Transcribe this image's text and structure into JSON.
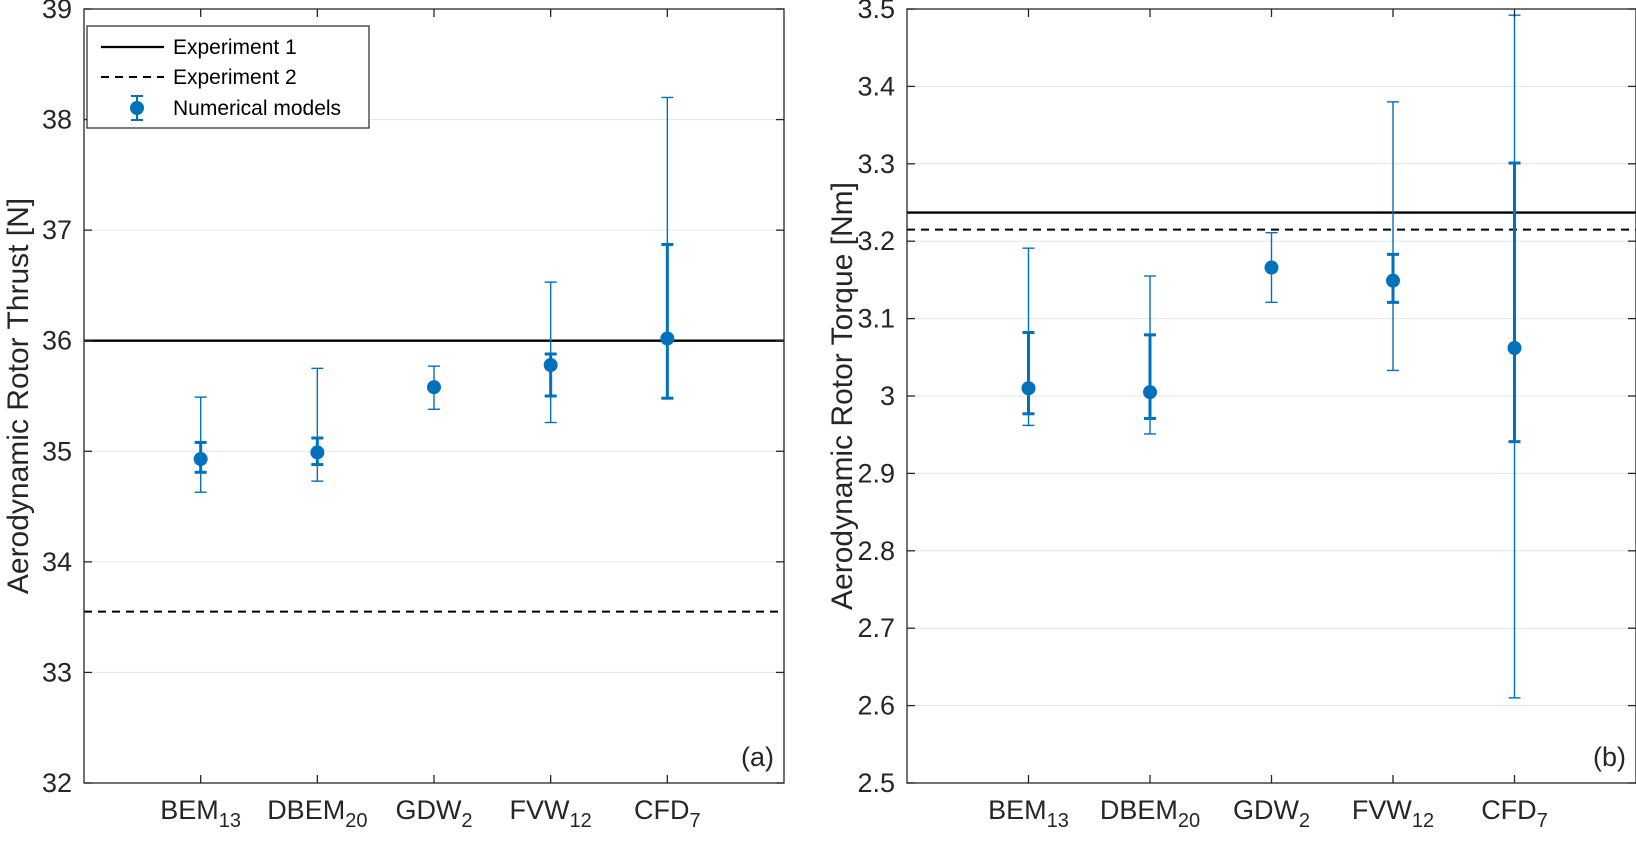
{
  "colors": {
    "accent": "#0072BD",
    "axis": "#262626",
    "grid": "#e6e6e6",
    "line": "#000000"
  },
  "legend": {
    "items": [
      {
        "label": "Experiment 1",
        "style": "solid"
      },
      {
        "label": "Experiment 2",
        "style": "dashed"
      },
      {
        "label": "Numerical models",
        "style": "marker"
      }
    ]
  },
  "chart_data": [
    {
      "type": "errorbar",
      "panel_label": "(a)",
      "ylabel": "Aerodynamic Rotor Thrust [N]",
      "ylim": [
        32,
        39
      ],
      "yticks": [
        "32",
        "33",
        "34",
        "35",
        "36",
        "37",
        "38",
        "39"
      ],
      "categories": [
        {
          "base": "BEM",
          "sub": "13"
        },
        {
          "base": "DBEM",
          "sub": "20"
        },
        {
          "base": "GDW",
          "sub": "2"
        },
        {
          "base": "FVW",
          "sub": "12"
        },
        {
          "base": "CFD",
          "sub": "7"
        }
      ],
      "reference_lines": [
        {
          "name": "Experiment 1",
          "value": 36.0,
          "style": "solid"
        },
        {
          "name": "Experiment 2",
          "value": 33.55,
          "style": "dashed"
        }
      ],
      "series": [
        {
          "name": "Numerical models",
          "values": [
            34.93,
            34.99,
            35.58,
            35.78,
            36.02
          ],
          "inner_range": [
            [
              34.81,
              35.08
            ],
            [
              34.88,
              35.12
            ],
            null,
            [
              35.5,
              35.88
            ],
            [
              35.48,
              36.87
            ]
          ],
          "outer_range": [
            [
              34.63,
              35.49
            ],
            [
              34.73,
              35.75
            ],
            [
              35.38,
              35.77
            ],
            [
              35.26,
              36.53
            ],
            [
              35.48,
              38.2
            ]
          ]
        }
      ]
    },
    {
      "type": "errorbar",
      "panel_label": "(b)",
      "ylabel": "Aerodynamic Rotor Torque [Nm]",
      "ylim": [
        2.5,
        3.5
      ],
      "yticks": [
        "2.5",
        "2.6",
        "2.7",
        "2.8",
        "2.9",
        "3",
        "3.1",
        "3.2",
        "3.3",
        "3.4",
        "3.5"
      ],
      "categories": [
        {
          "base": "BEM",
          "sub": "13"
        },
        {
          "base": "DBEM",
          "sub": "20"
        },
        {
          "base": "GDW",
          "sub": "2"
        },
        {
          "base": "FVW",
          "sub": "12"
        },
        {
          "base": "CFD",
          "sub": "7"
        }
      ],
      "reference_lines": [
        {
          "name": "Experiment 1",
          "value": 3.237,
          "style": "solid"
        },
        {
          "name": "Experiment 2",
          "value": 3.215,
          "style": "dashed"
        }
      ],
      "series": [
        {
          "name": "Numerical models",
          "values": [
            3.01,
            3.005,
            3.166,
            3.149,
            3.062
          ],
          "inner_range": [
            [
              2.977,
              3.082
            ],
            [
              2.971,
              3.079
            ],
            null,
            [
              3.121,
              3.183
            ],
            [
              2.941,
              3.301
            ]
          ],
          "outer_range": [
            [
              2.962,
              3.191
            ],
            [
              2.951,
              3.155
            ],
            [
              3.121,
              3.211
            ],
            [
              3.033,
              3.38
            ],
            [
              2.61,
              3.492
            ]
          ]
        }
      ]
    }
  ]
}
